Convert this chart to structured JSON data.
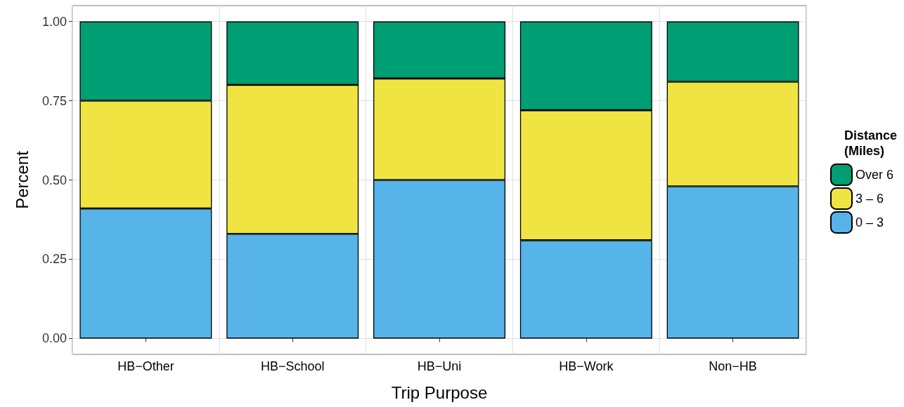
{
  "chart_data": {
    "type": "bar",
    "stacked": true,
    "xlabel": "Trip Purpose",
    "ylabel": "Percent",
    "legend_title": "Distance\n(Miles)",
    "legend": "right",
    "categories": [
      "HB−Other",
      "HB−School",
      "HB−Uni",
      "HB−Work",
      "Non−HB"
    ],
    "series": [
      {
        "name": "0 – 3",
        "color": "#56b4e9",
        "values": [
          0.41,
          0.33,
          0.5,
          0.31,
          0.48
        ]
      },
      {
        "name": "3 – 6",
        "color": "#f0e442",
        "values": [
          0.34,
          0.47,
          0.32,
          0.41,
          0.33
        ]
      },
      {
        "name": "Over 6",
        "color": "#009e73",
        "values": [
          0.25,
          0.2,
          0.18,
          0.28,
          0.19
        ]
      }
    ],
    "ylim": [
      -0.05,
      1.05
    ],
    "yticks": [
      {
        "value": 0,
        "label": "0.00"
      },
      {
        "value": 0.25,
        "label": "0.25"
      },
      {
        "value": 0.5,
        "label": "0.50"
      },
      {
        "value": 0.75,
        "label": "0.75"
      },
      {
        "value": 1,
        "label": "1.00"
      }
    ],
    "grid": true
  }
}
